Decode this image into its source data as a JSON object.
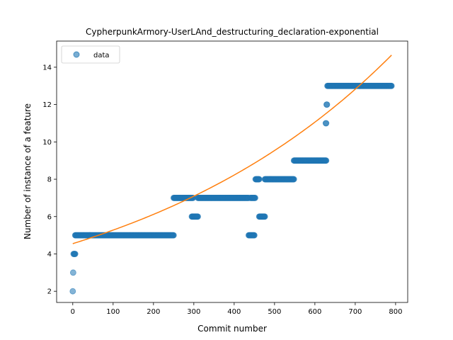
{
  "chart_data": {
    "type": "scatter",
    "title": "CypherpunkArmory-UserLAnd_destructuring_declaration-exponential",
    "xlabel": "Commit number",
    "ylabel": "Number of instance of a feature",
    "xlim": [
      -40,
      830
    ],
    "ylim": [
      1.4,
      15.4
    ],
    "xticks": [
      0,
      100,
      200,
      300,
      400,
      500,
      600,
      700,
      800
    ],
    "yticks": [
      2,
      4,
      6,
      8,
      10,
      12,
      14
    ],
    "grid": false,
    "legend": {
      "placement": "top-left",
      "entries": [
        "data"
      ]
    },
    "colors": {
      "data": "#1f77b4",
      "fit": "#ff7f0e"
    },
    "series": [
      {
        "name": "data",
        "kind": "scatter",
        "segments": [
          {
            "x": [
              0,
              0
            ],
            "y": 2
          },
          {
            "x": [
              1,
              1
            ],
            "y": 3
          },
          {
            "x": [
              2,
              6
            ],
            "y": 4
          },
          {
            "x": [
              6,
              250
            ],
            "y": 5
          },
          {
            "x": [
              250,
              298
            ],
            "y": 7
          },
          {
            "x": [
              295,
              310
            ],
            "y": 6
          },
          {
            "x": [
              310,
              436
            ],
            "y": 7
          },
          {
            "x": [
              436,
              450
            ],
            "y": 5
          },
          {
            "x": [
              440,
              452
            ],
            "y": 7
          },
          {
            "x": [
              453,
              462
            ],
            "y": 8
          },
          {
            "x": [
              462,
              476
            ],
            "y": 6
          },
          {
            "x": [
              476,
              548
            ],
            "y": 8
          },
          {
            "x": [
              548,
              628
            ],
            "y": 9
          },
          {
            "x": [
              627,
              628
            ],
            "y": 11
          },
          {
            "x": [
              629,
              630
            ],
            "y": 12
          },
          {
            "x": [
              631,
              790
            ],
            "y": 13
          }
        ]
      },
      {
        "kind": "line",
        "model": "exponential",
        "a": 4.55,
        "b": 0.00148,
        "x_range": [
          0,
          790
        ]
      }
    ]
  }
}
